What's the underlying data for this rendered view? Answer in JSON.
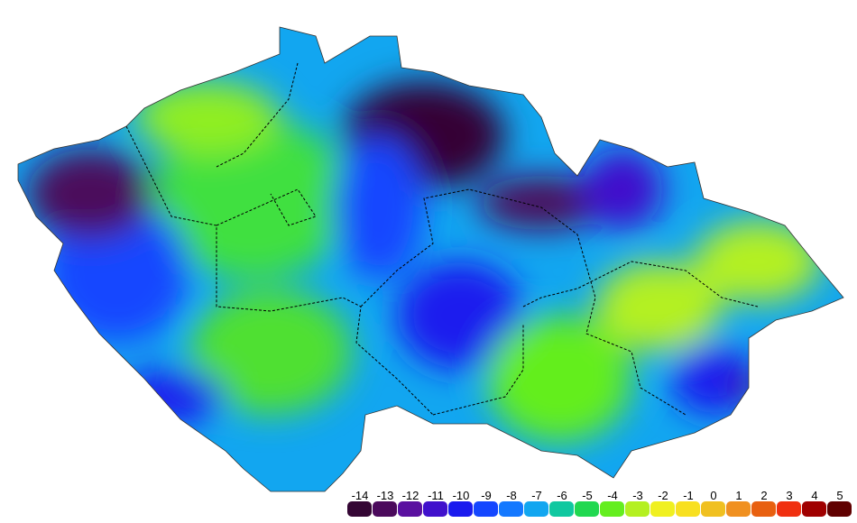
{
  "legend": {
    "items": [
      {
        "value": -14,
        "color": "#340634"
      },
      {
        "value": -13,
        "color": "#4b0a5c"
      },
      {
        "value": -12,
        "color": "#5a10a0"
      },
      {
        "value": -11,
        "color": "#4010cc"
      },
      {
        "value": -10,
        "color": "#1a1aee"
      },
      {
        "value": -9,
        "color": "#1446ff"
      },
      {
        "value": -8,
        "color": "#1478ff"
      },
      {
        "value": -7,
        "color": "#12a6f0"
      },
      {
        "value": -6,
        "color": "#10c8a0"
      },
      {
        "value": -5,
        "color": "#20d850"
      },
      {
        "value": -4,
        "color": "#64ee1e"
      },
      {
        "value": -3,
        "color": "#b4f020"
      },
      {
        "value": -2,
        "color": "#f0f020"
      },
      {
        "value": -1,
        "color": "#f8e020"
      },
      {
        "value": 0,
        "color": "#f0c020"
      },
      {
        "value": 1,
        "color": "#f09020"
      },
      {
        "value": 2,
        "color": "#e86010"
      },
      {
        "value": 3,
        "color": "#f03010"
      },
      {
        "value": 4,
        "color": "#a00000"
      },
      {
        "value": 5,
        "color": "#600000"
      }
    ]
  }
}
